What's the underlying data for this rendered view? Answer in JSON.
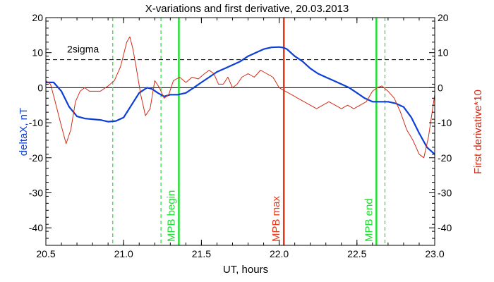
{
  "chart_data": {
    "type": "line",
    "title": "X-variations and first derivative, 20.03.2013",
    "xlabel": "UT, hours",
    "ylabel_left": "deltaX, nT",
    "ylabel_right": "First derivative*10",
    "xlim": [
      20.5,
      23.0
    ],
    "ylim": [
      -45,
      20
    ],
    "x_ticks": [
      "20.5",
      "21.0",
      "21.5",
      "22.0",
      "22.5",
      "23.0"
    ],
    "y_ticks": [
      "20",
      "10",
      "0",
      "-10",
      "-20",
      "-30",
      "-40"
    ],
    "sigma_level": 8,
    "sigma_label": "2sigma",
    "colors": {
      "deltaX": "#0b3fd6",
      "derivative": "#d42a14",
      "mpb_marker": "#22dd33",
      "max_marker": "#e8391a"
    },
    "series": [
      {
        "name": "deltaX, nT",
        "x": [
          20.5,
          20.55,
          20.6,
          20.65,
          20.7,
          20.75,
          20.8,
          20.85,
          20.9,
          20.95,
          21.0,
          21.05,
          21.1,
          21.15,
          21.18,
          21.22,
          21.26,
          21.3,
          21.35,
          21.4,
          21.45,
          21.5,
          21.55,
          21.6,
          21.65,
          21.7,
          21.75,
          21.8,
          21.85,
          21.9,
          21.95,
          22.0,
          22.03,
          22.05,
          22.1,
          22.15,
          22.2,
          22.25,
          22.3,
          22.35,
          22.4,
          22.45,
          22.5,
          22.55,
          22.6,
          22.65,
          22.7,
          22.75,
          22.8,
          22.85,
          22.9,
          22.95,
          23.0
        ],
        "values": [
          1.5,
          1.5,
          -1,
          -5.5,
          -8.2,
          -8.8,
          -9,
          -9.2,
          -9.7,
          -9.5,
          -8.5,
          -5,
          -1.5,
          0,
          -0.3,
          -1.5,
          -2.5,
          -2,
          -2,
          -1.5,
          0,
          1.5,
          3,
          4.5,
          5.5,
          6.5,
          7.5,
          9,
          10,
          11,
          11.5,
          11.6,
          11.4,
          11,
          9,
          7.5,
          5.5,
          4,
          3,
          2,
          1,
          0,
          -1.5,
          -3,
          -4,
          -4,
          -4,
          -4.5,
          -5.5,
          -8.5,
          -13,
          -17,
          -19
        ]
      },
      {
        "name": "First derivative*10",
        "x": [
          20.5,
          20.53,
          20.56,
          20.6,
          20.63,
          20.66,
          20.69,
          20.72,
          20.75,
          20.78,
          20.81,
          20.85,
          20.9,
          20.94,
          20.98,
          21.02,
          21.04,
          21.06,
          21.08,
          21.11,
          21.14,
          21.17,
          21.2,
          21.23,
          21.26,
          21.29,
          21.32,
          21.36,
          21.4,
          21.44,
          21.48,
          21.52,
          21.55,
          21.58,
          21.61,
          21.64,
          21.67,
          21.7,
          21.73,
          21.76,
          21.8,
          21.84,
          21.88,
          21.92,
          21.96,
          22.0,
          22.04,
          22.08,
          22.12,
          22.16,
          22.2,
          22.24,
          22.28,
          22.32,
          22.36,
          22.4,
          22.44,
          22.48,
          22.52,
          22.56,
          22.6,
          22.63,
          22.66,
          22.7,
          22.74,
          22.78,
          22.82,
          22.86,
          22.9,
          22.93,
          22.96,
          23.0
        ],
        "values": [
          2,
          1,
          -4,
          -11,
          -16,
          -12,
          -4,
          -1,
          0,
          -1,
          -1,
          -1,
          0.5,
          2,
          6,
          13,
          14.5,
          11,
          6,
          -2,
          -8,
          -6,
          2,
          0,
          -3,
          -2,
          2,
          3,
          1.5,
          3,
          2.5,
          4,
          5,
          4,
          1,
          1,
          3,
          0,
          1,
          3,
          4,
          3,
          5,
          4,
          3,
          0,
          -1,
          -2,
          -3,
          -4,
          -5,
          -6,
          -5,
          -4,
          -5,
          -6,
          -5,
          -6,
          -5,
          -4,
          -1,
          0,
          0.5,
          -1,
          -3,
          -7,
          -12,
          -15,
          -19,
          -20,
          -14,
          -2
        ]
      }
    ],
    "markers": [
      {
        "label": "",
        "x": 20.93,
        "style": "dashed",
        "color": "mpb_marker"
      },
      {
        "label": "",
        "x": 21.24,
        "style": "dashed",
        "color": "mpb_marker"
      },
      {
        "label": "MPB begin",
        "x": 21.355,
        "style": "solid",
        "color": "mpb_marker"
      },
      {
        "label": "MPB max",
        "x": 22.03,
        "style": "solid",
        "color": "max_marker"
      },
      {
        "label": "MPB end",
        "x": 22.625,
        "style": "solid",
        "color": "mpb_marker"
      },
      {
        "label": "",
        "x": 22.68,
        "style": "dashed",
        "color": "mpb_marker"
      }
    ]
  }
}
